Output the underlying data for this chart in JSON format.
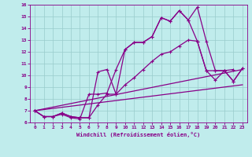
{
  "xlabel": "Windchill (Refroidissement éolien,°C)",
  "bg_color": "#c0ecec",
  "line_color": "#880088",
  "grid_color": "#99cccc",
  "xlim": [
    -0.5,
    23.5
  ],
  "ylim": [
    6,
    16
  ],
  "xticks": [
    0,
    1,
    2,
    3,
    4,
    5,
    6,
    7,
    8,
    9,
    10,
    11,
    12,
    13,
    14,
    15,
    16,
    17,
    18,
    19,
    20,
    21,
    22,
    23
  ],
  "yticks": [
    6,
    7,
    8,
    9,
    10,
    11,
    12,
    13,
    14,
    15,
    16
  ],
  "line1_x": [
    0,
    1,
    2,
    3,
    4,
    5,
    6,
    7,
    8,
    9,
    10,
    11,
    12,
    13,
    14,
    15,
    16,
    17,
    18,
    19,
    20,
    21,
    22,
    23
  ],
  "line1_y": [
    7.0,
    6.5,
    6.5,
    6.8,
    6.5,
    6.4,
    6.4,
    10.3,
    10.5,
    8.4,
    12.2,
    12.8,
    12.8,
    13.3,
    14.9,
    14.6,
    15.5,
    14.7,
    15.8,
    12.9,
    10.4,
    10.4,
    9.5,
    10.6
  ],
  "line2_x": [
    0,
    1,
    2,
    3,
    4,
    5,
    6,
    7,
    8,
    9,
    10,
    11,
    12,
    13,
    14,
    15,
    16,
    17,
    18,
    19,
    20,
    21,
    22,
    23
  ],
  "line2_y": [
    7.0,
    6.5,
    6.5,
    6.7,
    6.4,
    6.3,
    8.4,
    8.4,
    8.5,
    10.5,
    12.2,
    12.8,
    12.8,
    13.3,
    14.9,
    14.6,
    15.5,
    14.7,
    12.9,
    10.4,
    10.4,
    10.4,
    9.5,
    10.6
  ],
  "line3_x": [
    0,
    1,
    2,
    3,
    4,
    5,
    6,
    7,
    8,
    9,
    10,
    11,
    12,
    13,
    14,
    15,
    16,
    17,
    18,
    19,
    20,
    21,
    22
  ],
  "line3_y": [
    7.0,
    6.5,
    6.5,
    6.8,
    6.5,
    6.4,
    6.4,
    7.5,
    8.4,
    8.4,
    9.2,
    9.8,
    10.5,
    11.2,
    11.8,
    12.0,
    12.5,
    13.0,
    12.9,
    10.4,
    9.6,
    10.4,
    10.5
  ],
  "line4_x": [
    0,
    23
  ],
  "line4_y": [
    7.0,
    10.5
  ],
  "line5_x": [
    0,
    23
  ],
  "line5_y": [
    7.0,
    9.2
  ]
}
